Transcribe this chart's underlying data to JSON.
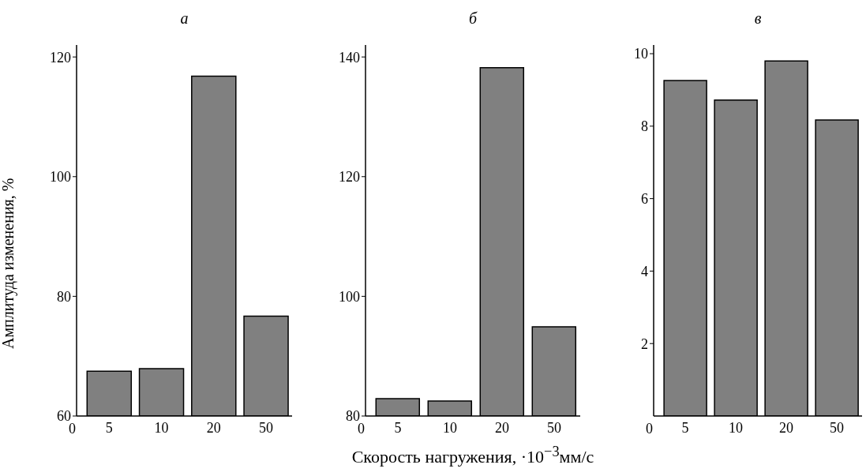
{
  "chart_data": [
    {
      "type": "bar",
      "title": "а",
      "ylabel": "Амплитуда изменения, %",
      "categories": [
        "5",
        "10",
        "20",
        "50"
      ],
      "values": [
        67.5,
        67.9,
        116.8,
        76.7
      ],
      "color": "#808080",
      "ylim": [
        60,
        122
      ],
      "yticks": [
        60,
        80,
        100,
        120
      ],
      "annotations": [
        "0"
      ]
    },
    {
      "type": "bar",
      "title": "б",
      "xlabel": "Скорость нагружения, ·10$^{−3}$мм/с",
      "categories": [
        "5",
        "10",
        "20",
        "50"
      ],
      "values": [
        82.9,
        82.5,
        138.2,
        94.9
      ],
      "color": "#808080",
      "ylim": [
        80,
        142
      ],
      "yticks": [
        80,
        100,
        120,
        140
      ],
      "annotations": [
        "0"
      ]
    },
    {
      "type": "bar",
      "title": "в",
      "categories": [
        "5",
        "10",
        "20",
        "50"
      ],
      "values": [
        9.26,
        8.72,
        9.8,
        8.17
      ],
      "color": "#808080",
      "ylim": [
        0,
        10.24
      ],
      "yticks": [
        2,
        4,
        6,
        8,
        10
      ],
      "annotations": [
        "0"
      ]
    }
  ]
}
